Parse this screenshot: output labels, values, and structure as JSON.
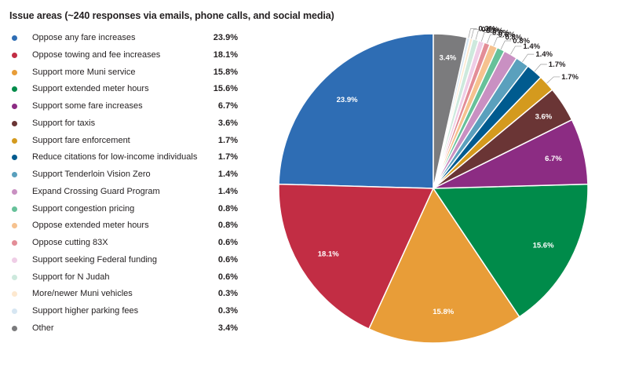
{
  "chart_data": {
    "type": "pie",
    "title": "Issue areas (~240 responses via emails, phone calls, and social media)",
    "legend_position": "left",
    "slices": [
      {
        "label": "Oppose any fare increases",
        "value": 23.9,
        "display": "23.9%",
        "color": "#2e6db4"
      },
      {
        "label": "Oppose towing and fee increases",
        "value": 18.1,
        "display": "18.1%",
        "color": "#c22d44"
      },
      {
        "label": "Support more Muni service",
        "value": 15.8,
        "display": "15.8%",
        "color": "#e89d38"
      },
      {
        "label": "Support extended meter hours",
        "value": 15.6,
        "display": "15.6%",
        "color": "#008b4a"
      },
      {
        "label": "Support some fare increases",
        "value": 6.7,
        "display": "6.7%",
        "color": "#8c2c83"
      },
      {
        "label": "Support for taxis",
        "value": 3.6,
        "display": "3.6%",
        "color": "#6a3535"
      },
      {
        "label": "Support fare enforcement",
        "value": 1.7,
        "display": "1.7%",
        "color": "#d49a1e"
      },
      {
        "label": "Reduce citations for low-income individuals",
        "value": 1.7,
        "display": "1.7%",
        "color": "#005b8f"
      },
      {
        "label": "Support Tenderloin Vision Zero",
        "value": 1.4,
        "display": "1.4%",
        "color": "#5aa0bd"
      },
      {
        "label": "Expand Crossing Guard Program",
        "value": 1.4,
        "display": "1.4%",
        "color": "#c990c2"
      },
      {
        "label": "Support congestion pricing",
        "value": 0.8,
        "display": "0.8%",
        "color": "#67c19a"
      },
      {
        "label": "Oppose extended meter hours",
        "value": 0.8,
        "display": "0.8%",
        "color": "#f6c28f"
      },
      {
        "label": "Oppose cutting 83X",
        "value": 0.6,
        "display": "0.6%",
        "color": "#e38d97"
      },
      {
        "label": "Support seeking Federal funding",
        "value": 0.6,
        "display": "0.6%",
        "color": "#efcde6"
      },
      {
        "label": "Support for N Judah",
        "value": 0.6,
        "display": "0.6%",
        "color": "#cde9dd"
      },
      {
        "label": "More/newer Muni vehicles",
        "value": 0.3,
        "display": "0.3%",
        "color": "#fde8cf"
      },
      {
        "label": "Support higher parking fees",
        "value": 0.3,
        "display": "0.3%",
        "color": "#d6e6f2"
      },
      {
        "label": "Other",
        "value": 3.4,
        "display": "3.4%",
        "color": "#7b7b7d"
      }
    ]
  }
}
